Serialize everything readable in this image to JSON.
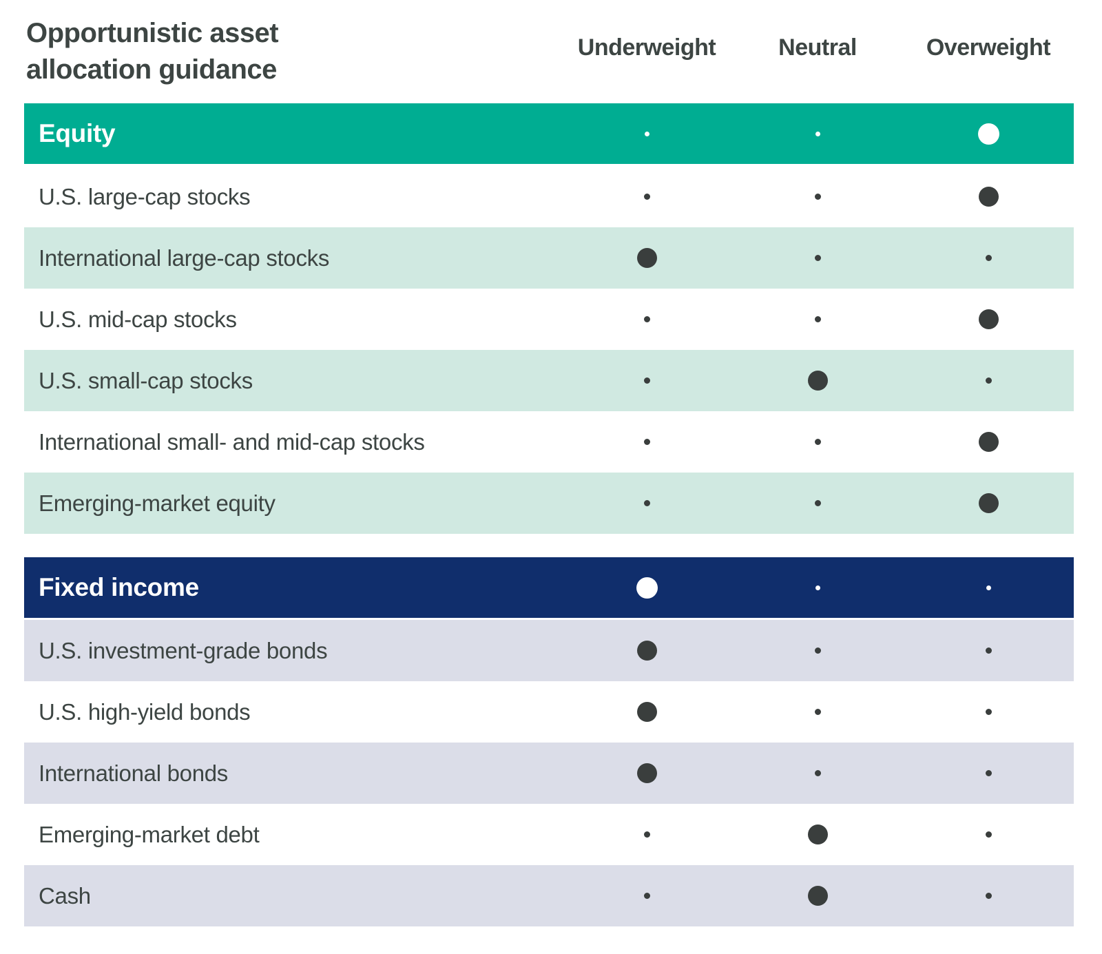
{
  "colors": {
    "equity_header": "#00AD92",
    "equity_row_tint": "#D0E9E1",
    "fixed_income_header": "#102E6C",
    "fixed_income_row_tint": "#DBDDE8",
    "dot_dark": "#3A3E3D",
    "dot_light": "#FFFFFF",
    "text": "#3D4543"
  },
  "chart_data": {
    "type": "table",
    "title": "Opportunistic asset allocation guidance",
    "title_lines": [
      "Opportunistic asset",
      "allocation guidance"
    ],
    "columns": [
      "Underweight",
      "Neutral",
      "Overweight"
    ],
    "legend_note": "Large dot marks current stance; small dots mark the unselected stances",
    "sections": [
      {
        "header": {
          "label": "Equity",
          "selected": "overweight"
        },
        "rows": [
          {
            "label": "U.S. large-cap stocks",
            "selected": "overweight"
          },
          {
            "label": "International large-cap stocks",
            "selected": "underweight"
          },
          {
            "label": "U.S. mid-cap stocks",
            "selected": "overweight"
          },
          {
            "label": "U.S. small-cap stocks",
            "selected": "neutral"
          },
          {
            "label": "International small- and mid-cap stocks",
            "selected": "overweight"
          },
          {
            "label": "Emerging-market equity",
            "selected": "overweight"
          }
        ]
      },
      {
        "header": {
          "label": "Fixed income",
          "selected": "underweight"
        },
        "rows": [
          {
            "label": "U.S. investment-grade bonds",
            "selected": "underweight"
          },
          {
            "label": "U.S. high-yield bonds",
            "selected": "underweight"
          },
          {
            "label": "International bonds",
            "selected": "underweight"
          },
          {
            "label": "Emerging-market debt",
            "selected": "neutral"
          },
          {
            "label": "Cash",
            "selected": "neutral"
          }
        ]
      }
    ]
  }
}
